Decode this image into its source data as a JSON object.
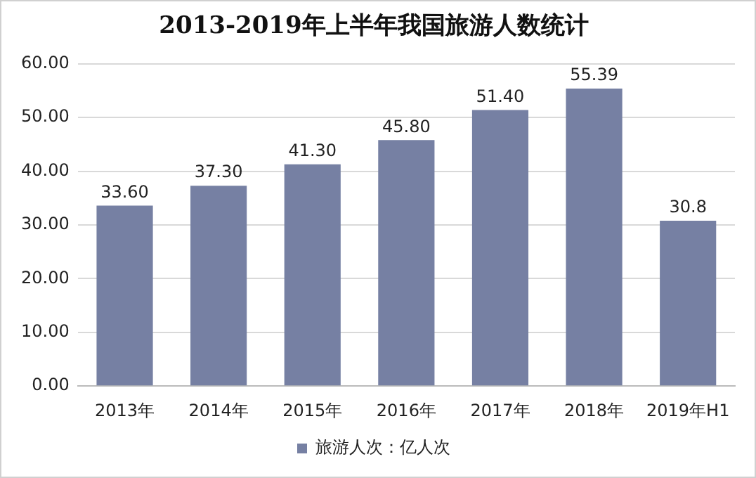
{
  "chart_data": {
    "type": "bar",
    "title": "2013-2019年上半年我国旅游人数统计",
    "categories": [
      "2013年",
      "2014年",
      "2015年",
      "2016年",
      "2017年",
      "2018年",
      "2019年H1"
    ],
    "series": [
      {
        "name": "旅游人次：亿人次",
        "color": "#7680a3",
        "values": [
          33.6,
          37.3,
          41.3,
          45.8,
          51.4,
          55.39,
          30.8
        ],
        "value_labels": [
          "33.60",
          "37.30",
          "41.30",
          "45.80",
          "51.40",
          "55.39",
          "30.8"
        ]
      }
    ],
    "ylim": [
      0,
      60
    ],
    "yticks": [
      {
        "value": 0,
        "label": "0.00"
      },
      {
        "value": 10,
        "label": "10.00"
      },
      {
        "value": 20,
        "label": "20.00"
      },
      {
        "value": 30,
        "label": "30.00"
      },
      {
        "value": 40,
        "label": "40.00"
      },
      {
        "value": 50,
        "label": "50.00"
      },
      {
        "value": 60,
        "label": "60.00"
      }
    ],
    "grid": "y",
    "legend": "bottom"
  }
}
